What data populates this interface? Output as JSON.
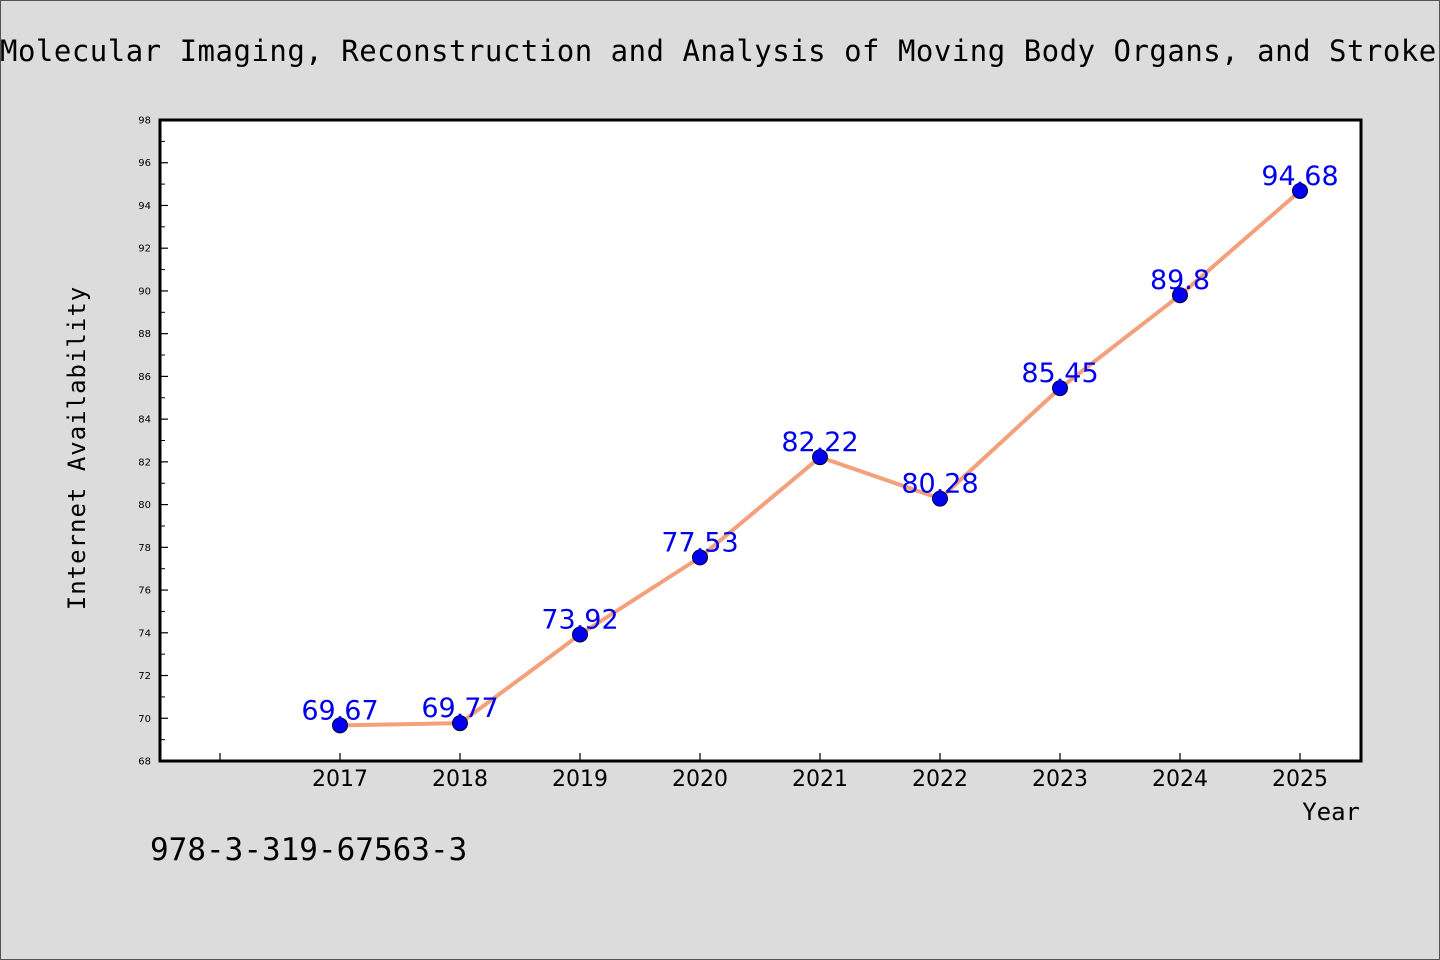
{
  "chart_data": {
    "type": "line",
    "title": "Molecular Imaging, Reconstruction and Analysis of Moving Body Organs, and Stroke",
    "xlabel": "Year",
    "ylabel": "Internet Availability",
    "categories": [
      "2017",
      "2018",
      "2019",
      "2020",
      "2021",
      "2022",
      "2023",
      "2024",
      "2025"
    ],
    "series": [
      {
        "values": [
          69.67,
          69.77,
          73.92,
          77.53,
          82.22,
          80.28,
          85.45,
          89.8,
          94.68
        ],
        "labels": [
          "69.67",
          "69.77",
          "73.92",
          "77.53",
          "82.22",
          "80.28",
          "85.45",
          "89.8",
          "94.68"
        ],
        "line_color": "#f4a07a",
        "marker_color": "#0000ee",
        "label_color": "#0000ee"
      }
    ],
    "ylim": [
      68,
      98
    ],
    "yticks": [
      "68",
      "70",
      "72",
      "74",
      "76",
      "78",
      "80",
      "82",
      "84",
      "86",
      "88",
      "90",
      "92",
      "94",
      "96",
      "98"
    ],
    "grid": false,
    "legend": "none"
  },
  "footer": {
    "text": "978-3-319-67563-3"
  },
  "colors": {
    "background": "#dcdcdc",
    "plot_background": "#ffffff"
  }
}
